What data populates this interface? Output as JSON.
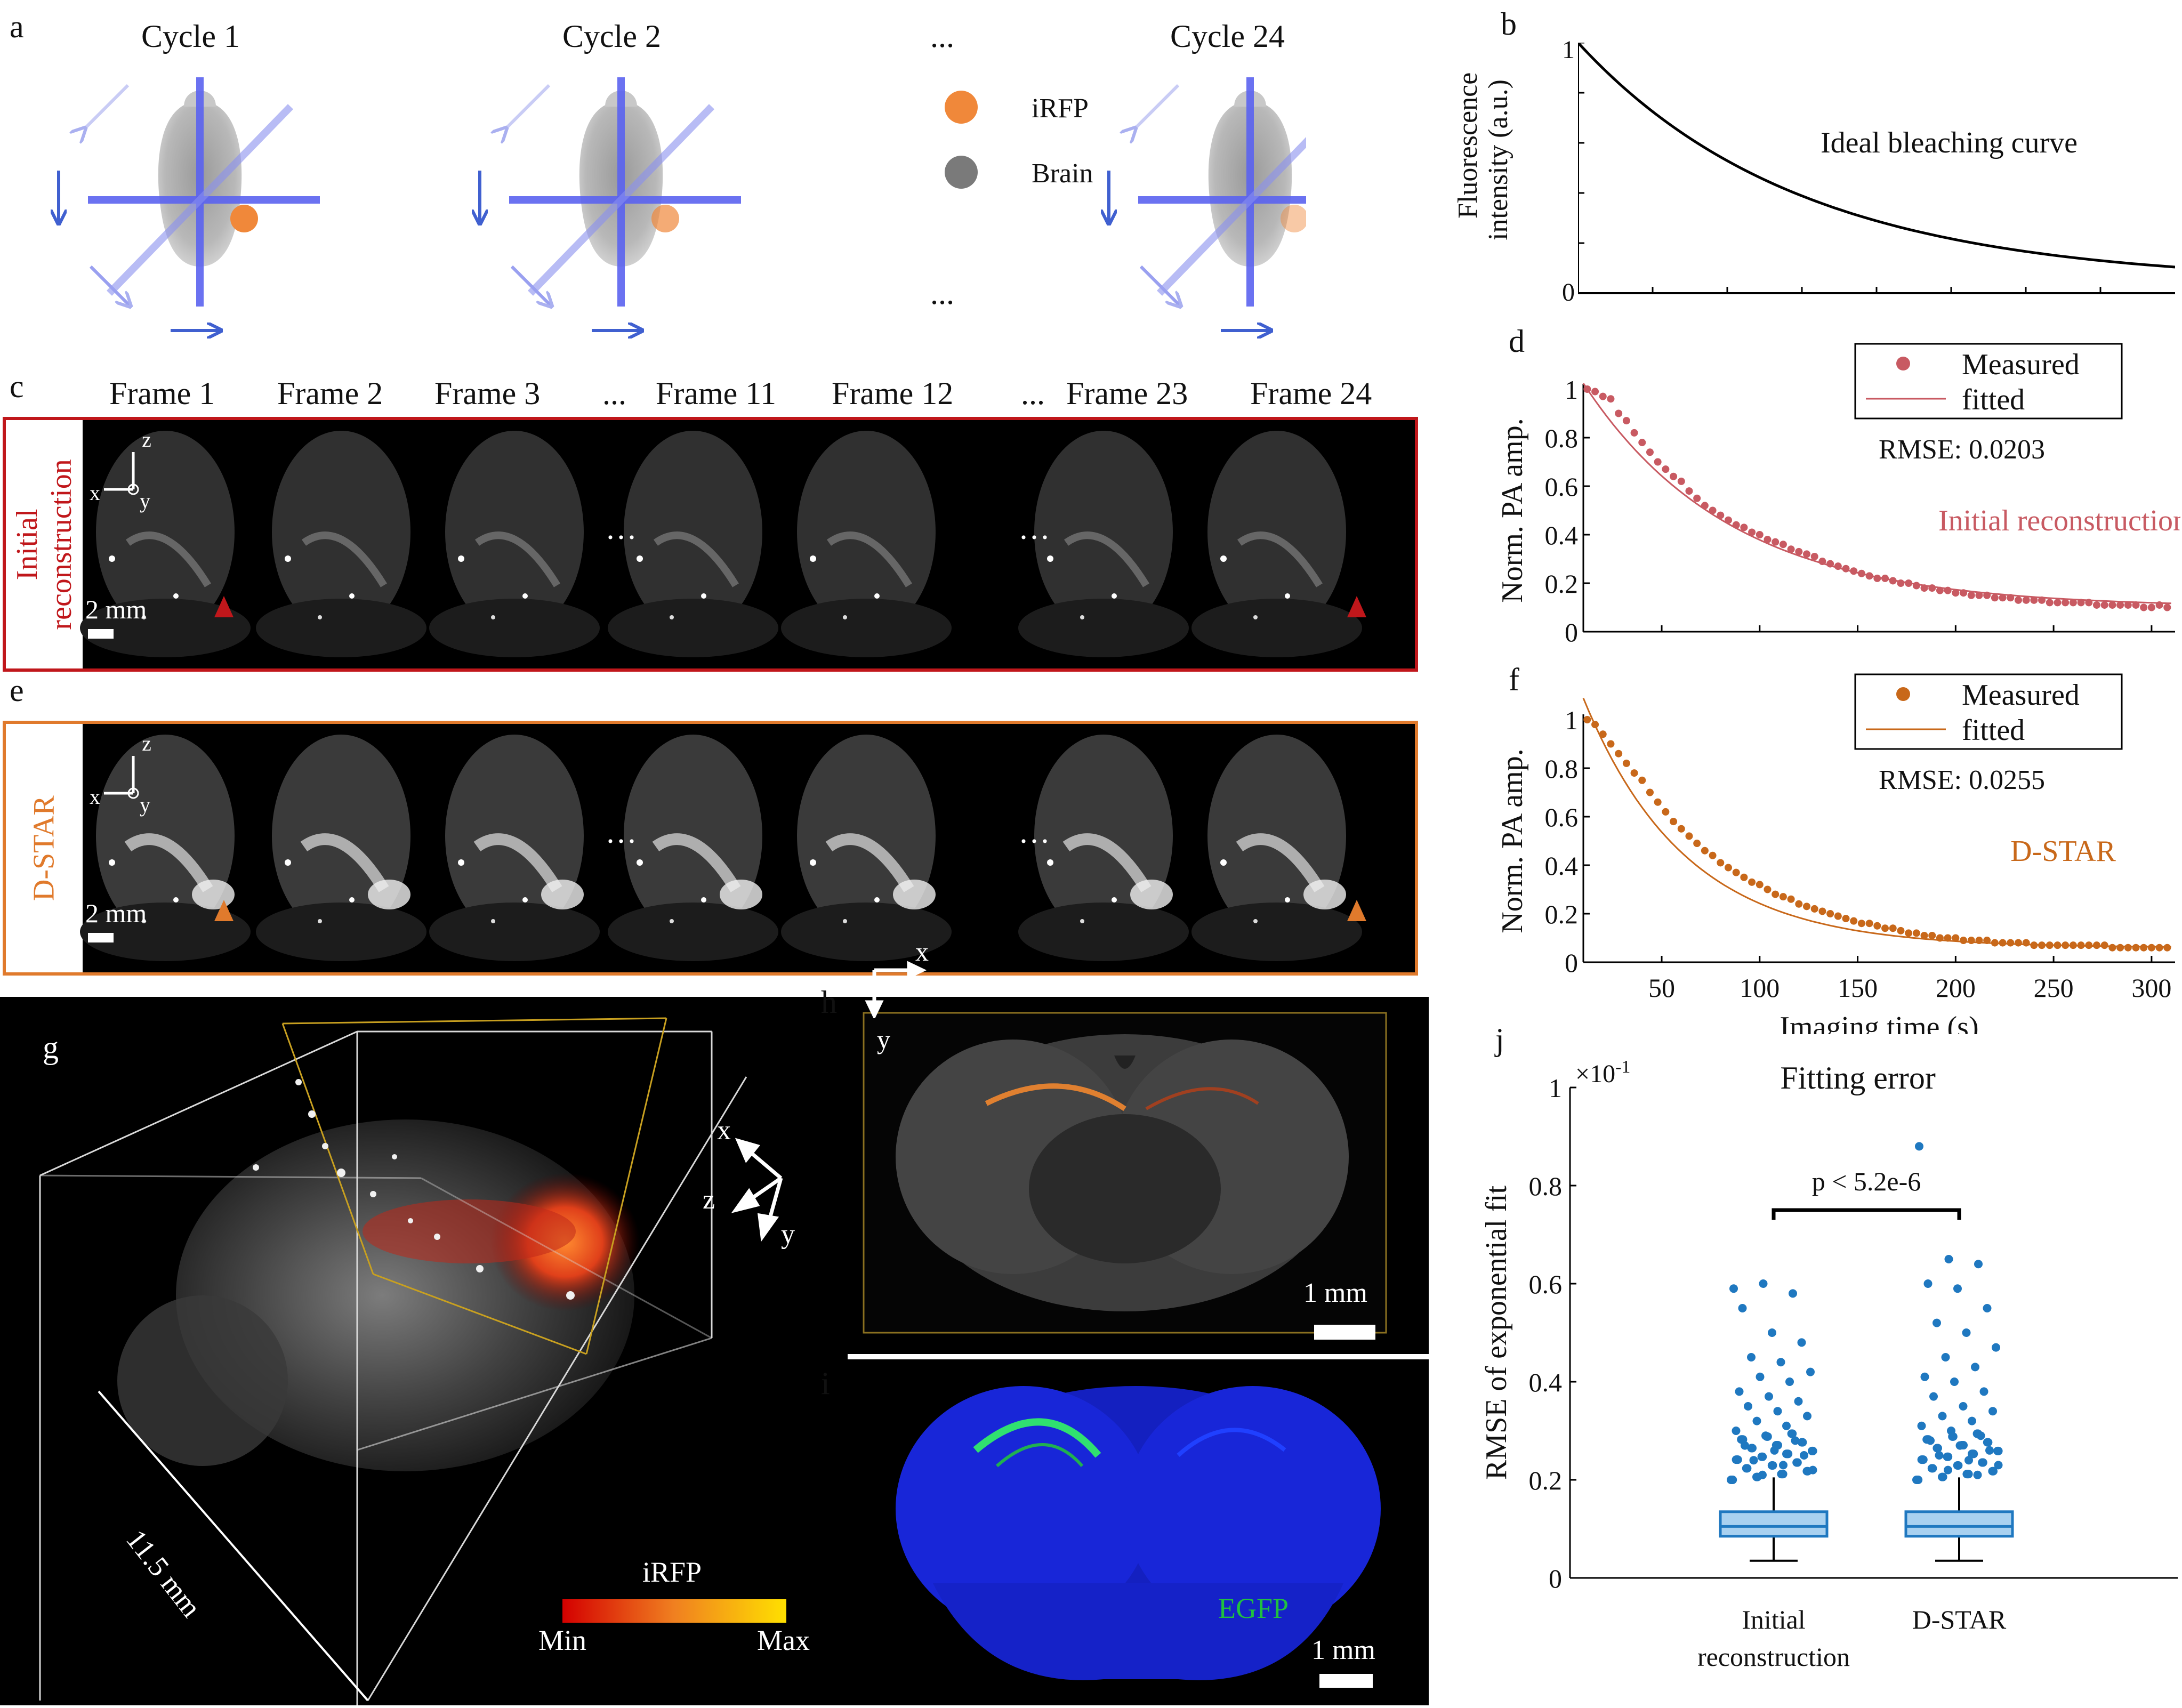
{
  "panel_letters": {
    "a": "a",
    "b": "b",
    "c": "c",
    "d": "d",
    "e": "e",
    "f": "f",
    "g": "g",
    "h": "h",
    "i": "i",
    "j": "j"
  },
  "panel_a": {
    "cycles": [
      "Cycle 1",
      "Cycle 2",
      "Cycle 24"
    ],
    "ellipsis_top": "...",
    "ellipsis_bottom": "...",
    "legend": [
      {
        "label": "iRFP",
        "color": "#f0883a"
      },
      {
        "label": "Brain",
        "color": "#7a7a7a"
      }
    ],
    "scan_color": "#5b63f0",
    "arrow_color": "#4060d0"
  },
  "panel_b": {
    "ylabel": "Fluorescence intensity (a.u.)",
    "ylabel_line1": "Fluorescence",
    "ylabel_line2": "intensity (a.u.)",
    "annotation": "Ideal bleaching curve",
    "ytick_top": "1",
    "ytick_bottom": "0"
  },
  "panel_c": {
    "frames": [
      "Frame 1",
      "Frame 2",
      "Frame 3",
      "...",
      "Frame 11",
      "Frame 12",
      "...",
      "Frame 23",
      "Frame 24"
    ],
    "row_label_line1": "Initial",
    "row_label_line2": "reconstruction",
    "row_color": "#c0171b",
    "scale": "2 mm",
    "ellipsis": "···",
    "axes": {
      "z": "z",
      "x": "x",
      "y": "y"
    }
  },
  "panel_e": {
    "row_label": "D-STAR",
    "row_color": "#e07a2c",
    "scale": "2 mm",
    "ellipsis": "···",
    "axes": {
      "z": "z",
      "x": "x",
      "y": "y"
    }
  },
  "panel_g": {
    "scale": "11.5 mm",
    "colorbar_title": "iRFP",
    "colorbar_min": "Min",
    "colorbar_max": "Max",
    "axes": {
      "x": "x",
      "z": "z",
      "y": "y"
    }
  },
  "panel_h": {
    "scale": "1 mm",
    "axes": {
      "x": "x",
      "y": "y"
    }
  },
  "panel_i": {
    "scale": "1 mm",
    "label": "EGFP",
    "label_color": "#20c040"
  },
  "chart_data": [
    {
      "id": "b",
      "type": "line",
      "ylabel": "Fluorescence intensity (a.u.)",
      "annotation": "Ideal bleaching curve",
      "ylim": [
        0,
        1
      ],
      "yticks": [
        "0",
        "1"
      ],
      "series": [
        {
          "values_rule": "exponential decay from 1 to about 0.07"
        }
      ]
    },
    {
      "id": "d",
      "type": "scatter",
      "ylabel": "Norm. PA amp.",
      "xlim": [
        10,
        312
      ],
      "ylim": [
        0,
        1
      ],
      "yticks": [
        "0",
        "0.2",
        "0.4",
        "0.6",
        "0.8",
        "1"
      ],
      "legend": [
        "Measured",
        "fitted"
      ],
      "rmse_text": "RMSE: 0.0203",
      "method": "Initial reconstruction",
      "color": "#c85a62",
      "fit": {
        "a": 0.9,
        "tau": 75.0,
        "c": 0.1
      },
      "points": [
        [
          12,
          1.0
        ],
        [
          16,
          0.99
        ],
        [
          20,
          0.97
        ],
        [
          24,
          0.96
        ],
        [
          28,
          0.9
        ],
        [
          32,
          0.87
        ],
        [
          36,
          0.82
        ],
        [
          40,
          0.78
        ],
        [
          44,
          0.74
        ],
        [
          48,
          0.7
        ],
        [
          52,
          0.67
        ],
        [
          56,
          0.64
        ],
        [
          60,
          0.62
        ],
        [
          64,
          0.58
        ],
        [
          68,
          0.55
        ],
        [
          72,
          0.52
        ],
        [
          76,
          0.5
        ],
        [
          80,
          0.48
        ],
        [
          84,
          0.46
        ],
        [
          88,
          0.44
        ],
        [
          92,
          0.43
        ],
        [
          96,
          0.41
        ],
        [
          100,
          0.4
        ],
        [
          104,
          0.38
        ],
        [
          108,
          0.37
        ],
        [
          112,
          0.36
        ],
        [
          116,
          0.34
        ],
        [
          120,
          0.33
        ],
        [
          124,
          0.32
        ],
        [
          128,
          0.31
        ],
        [
          132,
          0.29
        ],
        [
          136,
          0.28
        ],
        [
          140,
          0.27
        ],
        [
          144,
          0.26
        ],
        [
          148,
          0.25
        ],
        [
          152,
          0.24
        ],
        [
          156,
          0.23
        ],
        [
          160,
          0.22
        ],
        [
          164,
          0.22
        ],
        [
          168,
          0.21
        ],
        [
          172,
          0.2
        ],
        [
          176,
          0.2
        ],
        [
          180,
          0.19
        ],
        [
          184,
          0.18
        ],
        [
          188,
          0.18
        ],
        [
          192,
          0.17
        ],
        [
          196,
          0.17
        ],
        [
          200,
          0.16
        ],
        [
          204,
          0.16
        ],
        [
          208,
          0.15
        ],
        [
          212,
          0.15
        ],
        [
          216,
          0.15
        ],
        [
          220,
          0.14
        ],
        [
          224,
          0.14
        ],
        [
          228,
          0.14
        ],
        [
          232,
          0.13
        ],
        [
          236,
          0.13
        ],
        [
          240,
          0.13
        ],
        [
          244,
          0.13
        ],
        [
          248,
          0.12
        ],
        [
          252,
          0.12
        ],
        [
          256,
          0.12
        ],
        [
          260,
          0.12
        ],
        [
          264,
          0.12
        ],
        [
          268,
          0.12
        ],
        [
          272,
          0.11
        ],
        [
          276,
          0.11
        ],
        [
          280,
          0.11
        ],
        [
          284,
          0.11
        ],
        [
          288,
          0.11
        ],
        [
          292,
          0.11
        ],
        [
          296,
          0.1
        ],
        [
          300,
          0.1
        ],
        [
          304,
          0.11
        ],
        [
          308,
          0.1
        ]
      ]
    },
    {
      "id": "f",
      "type": "scatter",
      "xlabel": "Imaging time (s)",
      "ylabel": "Norm. PA amp.",
      "xlim": [
        10,
        312
      ],
      "ylim": [
        0,
        1
      ],
      "xticks": [
        "50",
        "100",
        "150",
        "200",
        "250",
        "300"
      ],
      "yticks": [
        "0",
        "0.2",
        "0.4",
        "0.6",
        "0.8",
        "1"
      ],
      "legend": [
        "Measured",
        "fitted"
      ],
      "rmse_text": "RMSE: 0.0255",
      "method": "D-STAR",
      "color": "#c8681a",
      "fit": {
        "a": 0.99,
        "tau": 52.0,
        "c": 0.06
      },
      "points": [
        [
          12,
          1.0
        ],
        [
          16,
          0.98
        ],
        [
          20,
          0.94
        ],
        [
          24,
          0.9
        ],
        [
          28,
          0.86
        ],
        [
          32,
          0.82
        ],
        [
          36,
          0.78
        ],
        [
          40,
          0.75
        ],
        [
          44,
          0.7
        ],
        [
          48,
          0.66
        ],
        [
          52,
          0.62
        ],
        [
          56,
          0.58
        ],
        [
          60,
          0.55
        ],
        [
          64,
          0.52
        ],
        [
          68,
          0.49
        ],
        [
          72,
          0.46
        ],
        [
          76,
          0.44
        ],
        [
          80,
          0.41
        ],
        [
          84,
          0.39
        ],
        [
          88,
          0.37
        ],
        [
          92,
          0.35
        ],
        [
          96,
          0.33
        ],
        [
          100,
          0.32
        ],
        [
          104,
          0.3
        ],
        [
          108,
          0.28
        ],
        [
          112,
          0.27
        ],
        [
          116,
          0.26
        ],
        [
          120,
          0.24
        ],
        [
          124,
          0.23
        ],
        [
          128,
          0.22
        ],
        [
          132,
          0.21
        ],
        [
          136,
          0.2
        ],
        [
          140,
          0.19
        ],
        [
          144,
          0.18
        ],
        [
          148,
          0.17
        ],
        [
          152,
          0.16
        ],
        [
          156,
          0.16
        ],
        [
          160,
          0.15
        ],
        [
          164,
          0.14
        ],
        [
          168,
          0.14
        ],
        [
          172,
          0.13
        ],
        [
          176,
          0.12
        ],
        [
          180,
          0.12
        ],
        [
          184,
          0.11
        ],
        [
          188,
          0.11
        ],
        [
          192,
          0.1
        ],
        [
          196,
          0.1
        ],
        [
          200,
          0.1
        ],
        [
          204,
          0.09
        ],
        [
          208,
          0.09
        ],
        [
          212,
          0.09
        ],
        [
          216,
          0.09
        ],
        [
          220,
          0.08
        ],
        [
          224,
          0.08
        ],
        [
          228,
          0.08
        ],
        [
          232,
          0.08
        ],
        [
          236,
          0.08
        ],
        [
          240,
          0.07
        ],
        [
          244,
          0.07
        ],
        [
          248,
          0.07
        ],
        [
          252,
          0.07
        ],
        [
          256,
          0.07
        ],
        [
          260,
          0.07
        ],
        [
          264,
          0.07
        ],
        [
          268,
          0.07
        ],
        [
          272,
          0.07
        ],
        [
          276,
          0.07
        ],
        [
          280,
          0.06
        ],
        [
          284,
          0.06
        ],
        [
          288,
          0.06
        ],
        [
          292,
          0.06
        ],
        [
          296,
          0.06
        ],
        [
          300,
          0.06
        ],
        [
          304,
          0.06
        ],
        [
          308,
          0.06
        ]
      ]
    },
    {
      "id": "j",
      "type": "box",
      "title": "Fitting error",
      "ylabel": "RMSE of exponential fit",
      "multiplier": "×10",
      "multiplier_exp": "-1",
      "ylim": [
        0,
        1
      ],
      "yticks": [
        "0",
        "0.2",
        "0.4",
        "0.6",
        "0.8",
        "1"
      ],
      "categories": [
        "Initial reconstruction",
        "D-STAR"
      ],
      "significance": "p < 5.2e-6",
      "boxes": [
        {
          "name": "Initial reconstruction",
          "label_line1": "Initial",
          "label_line2": "reconstruction",
          "min": 0.035,
          "q1": 0.085,
          "median": 0.105,
          "q3": 0.135,
          "max": 0.205,
          "outliers": [
            0.59,
            0.6,
            0.58,
            0.55,
            0.5,
            0.48,
            0.45,
            0.44,
            0.42,
            0.41,
            0.4,
            0.38,
            0.37,
            0.36,
            0.35,
            0.34,
            0.33,
            0.32,
            0.31,
            0.3,
            0.29,
            0.28,
            0.27,
            0.26,
            0.25,
            0.24,
            0.23,
            0.22,
            0.21
          ]
        },
        {
          "name": "D-STAR",
          "label_line1": "D-STAR",
          "label_line2": "",
          "min": 0.035,
          "q1": 0.085,
          "median": 0.105,
          "q3": 0.135,
          "max": 0.205,
          "outliers": [
            0.88,
            0.65,
            0.64,
            0.6,
            0.59,
            0.55,
            0.52,
            0.5,
            0.47,
            0.45,
            0.43,
            0.41,
            0.4,
            0.38,
            0.37,
            0.35,
            0.34,
            0.33,
            0.32,
            0.31,
            0.3,
            0.29,
            0.28,
            0.27,
            0.26,
            0.25,
            0.24,
            0.23,
            0.22,
            0.21
          ]
        }
      ],
      "color": "#1f78c0",
      "box_fill": "#a9d1f0"
    }
  ]
}
